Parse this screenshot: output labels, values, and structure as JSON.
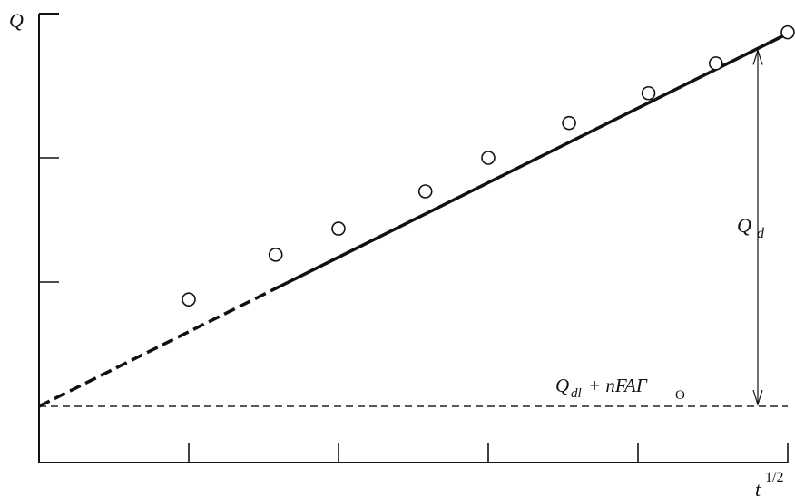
{
  "chart_data": {
    "type": "scatter",
    "title": "",
    "xlabel": "t",
    "xlabel_superscript": "1/2",
    "ylabel": "Q",
    "xlim": [
      0,
      5
    ],
    "ylim": [
      -0.6,
      2.9
    ],
    "x_ticks": [
      1,
      2,
      3,
      4,
      5
    ],
    "y_ticks": [
      1,
      2
    ],
    "grid": false,
    "points": [
      {
        "x": 1.0,
        "y": 0.86
      },
      {
        "x": 1.58,
        "y": 1.22
      },
      {
        "x": 2.0,
        "y": 1.43
      },
      {
        "x": 2.58,
        "y": 1.73
      },
      {
        "x": 3.0,
        "y": 2.0
      },
      {
        "x": 3.54,
        "y": 2.28
      },
      {
        "x": 4.07,
        "y": 2.52
      },
      {
        "x": 4.52,
        "y": 2.76
      },
      {
        "x": 5.0,
        "y": 3.01
      }
    ],
    "fit_line": {
      "intercept": 0.0,
      "slope": 0.6,
      "dashed_until_x": 1.55
    },
    "baseline": {
      "y": 0.0,
      "label": "Q",
      "label_sub": "dl",
      "label_rest": " + nFAΓ",
      "label_sub2": "O"
    },
    "annotation": {
      "label": "Q",
      "label_sub": "d",
      "x": 4.8
    }
  }
}
